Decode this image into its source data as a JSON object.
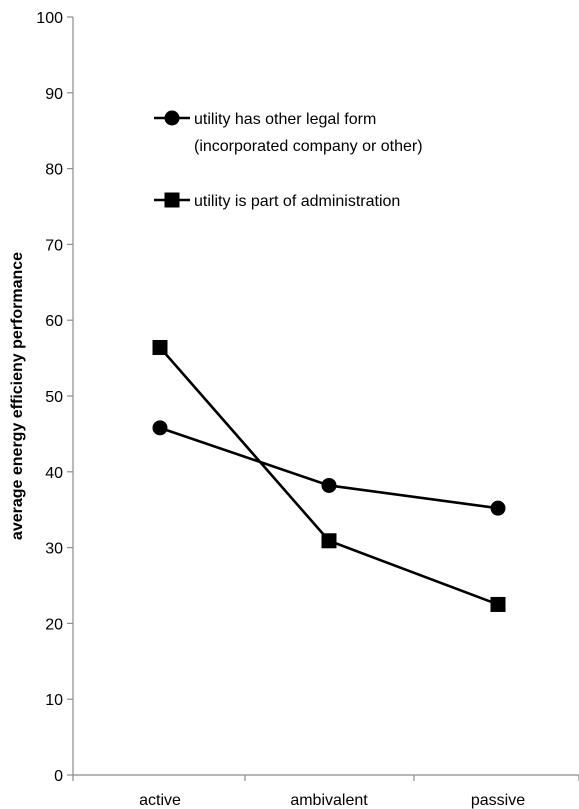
{
  "chart_data": {
    "type": "line",
    "categories": [
      "active",
      "ambivalent",
      "passive"
    ],
    "series": [
      {
        "name": "utility has other legal form",
        "name_line2": "(incorporated company or other)",
        "marker": "circle",
        "values": [
          45.8,
          38.2,
          35.2
        ]
      },
      {
        "name": "utility is part of administration",
        "marker": "square",
        "values": [
          56.4,
          30.9,
          22.5
        ]
      }
    ],
    "ylabel": "average energy efficieny performance",
    "xlabel": "",
    "ylim": [
      0,
      100
    ],
    "yticks": [
      0,
      10,
      20,
      30,
      40,
      50,
      60,
      70,
      80,
      90,
      100
    ],
    "grid": false,
    "legend_position": "top-left-inside",
    "colors": {
      "line": "#000000",
      "axis": "#8c8c8c"
    }
  }
}
